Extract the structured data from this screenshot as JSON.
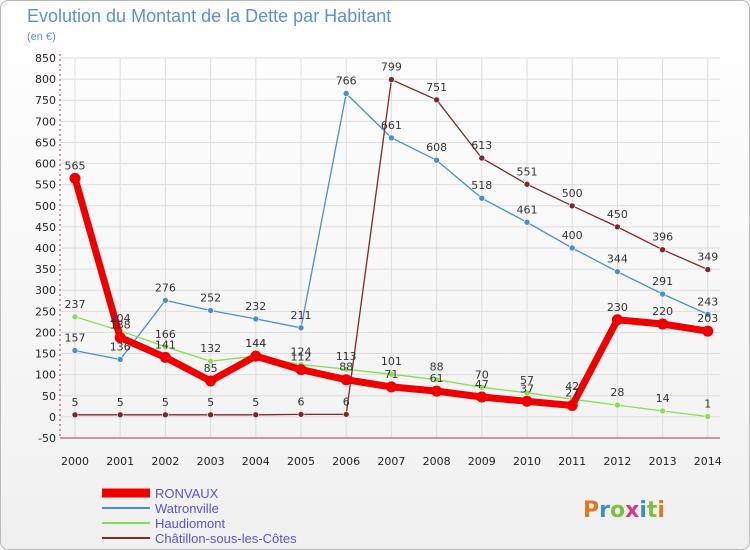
{
  "chart_data": {
    "type": "line",
    "title": "Evolution du Montant de la Dette par Habitant",
    "subtitle": "(en €)",
    "xlabel": "",
    "ylabel": "",
    "ylim": [
      -50,
      850
    ],
    "yticks": [
      -50,
      0,
      50,
      100,
      150,
      200,
      250,
      300,
      350,
      400,
      450,
      500,
      550,
      600,
      650,
      700,
      750,
      800,
      850
    ],
    "categories": [
      "2000",
      "2001",
      "2002",
      "2003",
      "2004",
      "2005",
      "2006",
      "2007",
      "2008",
      "2009",
      "2010",
      "2011",
      "2012",
      "2013",
      "2014"
    ],
    "grid": true,
    "legend": "bottom-left",
    "series": [
      {
        "name": "RONVAUX",
        "color": "#ee0000",
        "emphasis": true,
        "values": [
          565,
          188,
          141,
          85,
          144,
          112,
          88,
          71,
          61,
          47,
          37,
          27,
          230,
          220,
          203
        ]
      },
      {
        "name": "Watronville",
        "color": "#4a8ecf",
        "emphasis": false,
        "values": [
          157,
          136,
          276,
          252,
          232,
          211,
          766,
          661,
          608,
          518,
          461,
          400,
          344,
          291,
          243
        ]
      },
      {
        "name": "Haudiomont",
        "color": "#88dd55",
        "emphasis": false,
        "values": [
          237,
          204,
          166,
          132,
          144,
          124,
          113,
          101,
          88,
          70,
          57,
          42,
          28,
          14,
          1
        ]
      },
      {
        "name": "Châtillon-sous-les-Côtes",
        "color": "#7a2a2a",
        "emphasis": false,
        "values": [
          5,
          5,
          5,
          5,
          5,
          6,
          6,
          799,
          751,
          613,
          551,
          500,
          450,
          396,
          349
        ]
      }
    ],
    "watermark": "Proxiti"
  },
  "colors": {
    "title": "#5c8fd6",
    "axis_text": "#222222",
    "grid": "#dddddd",
    "axis": "#aa3366",
    "legend_text": "#5555cc"
  }
}
